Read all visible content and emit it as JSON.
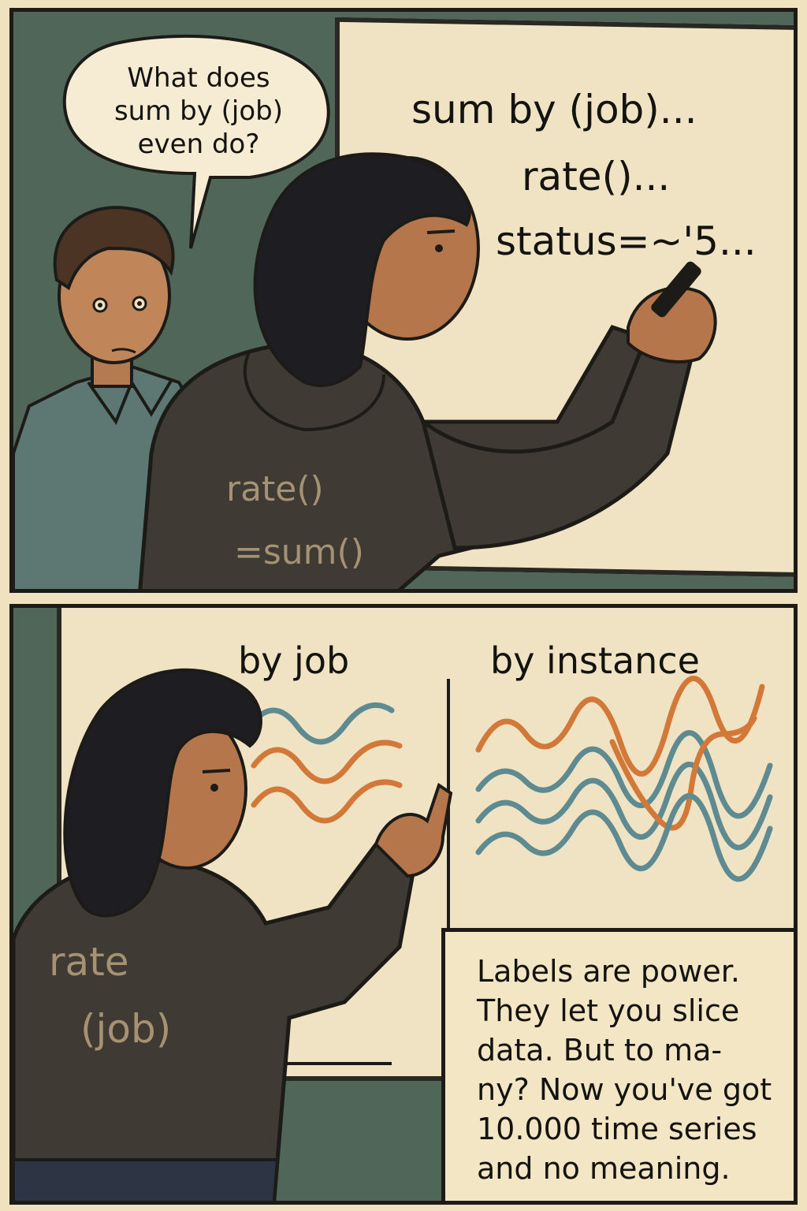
{
  "panel_top": {
    "speech_bubble": {
      "lines": [
        "What does",
        "sum by (job)",
        "even do?"
      ]
    },
    "whiteboard": {
      "lines": [
        "sum by (job)...",
        "rate()...",
        "status=~'5..."
      ]
    },
    "hoodie": {
      "lines": [
        "rate()",
        "=sum()"
      ]
    }
  },
  "panel_bottom": {
    "whiteboard": {
      "left_heading": "by job",
      "right_heading": "by instance"
    },
    "hoodie": {
      "lines": [
        "rate",
        "(job)"
      ]
    },
    "caption": {
      "lines": [
        "Labels are power.",
        "They let you slice",
        "data. But to ma-",
        "ny? Now you've got",
        "10.000 time series",
        "and no meaning."
      ]
    }
  },
  "colors": {
    "wall": "#4f6659",
    "board": "#efe3c3",
    "ink": "#14130f",
    "hoodie": "#3f3a34",
    "skin": "#b4764a",
    "teal_line": "#5e8a92",
    "orange_line": "#d27838"
  }
}
